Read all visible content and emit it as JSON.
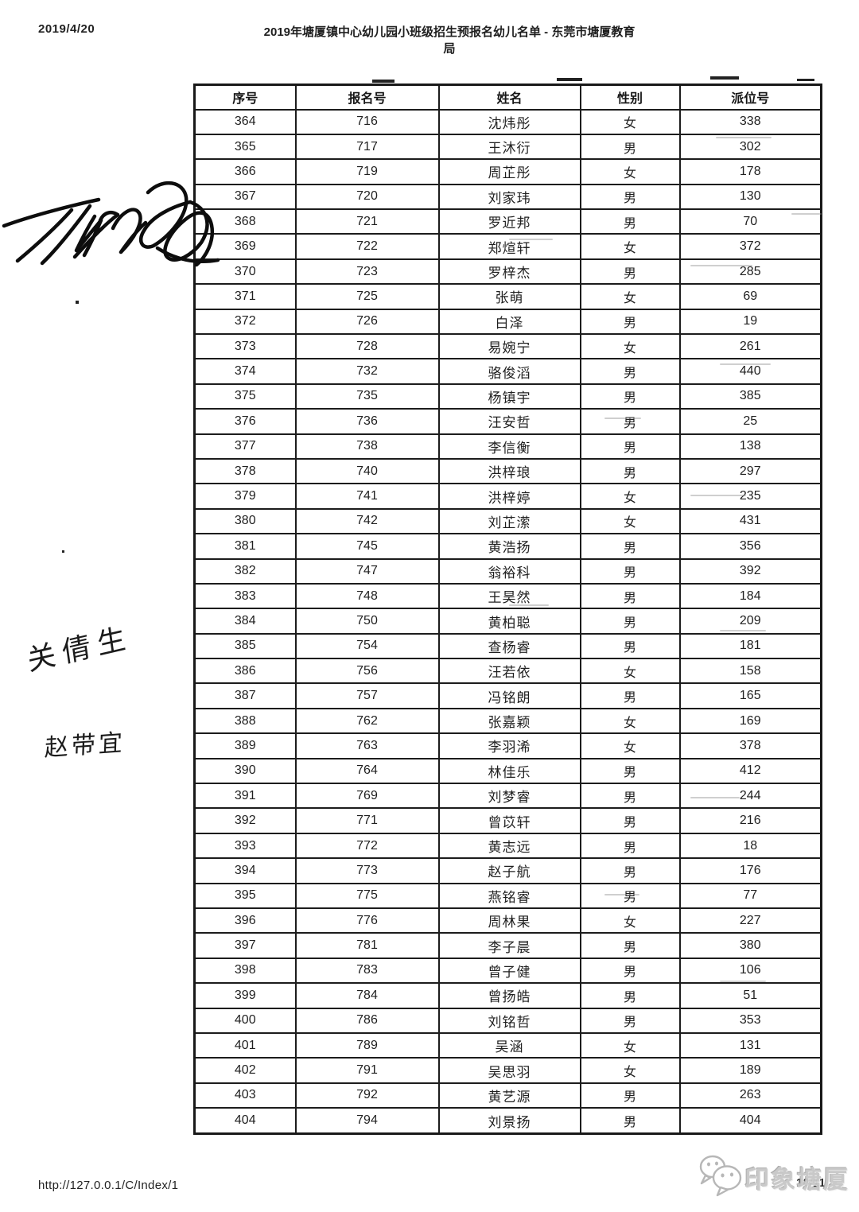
{
  "page": {
    "date": "2019/4/20",
    "title": "2019年塘厦镇中心幼儿园小班级招生预报名幼儿名单 - 东莞市塘厦教育局",
    "footer_url": "http://127.0.0.1/C/Index/1",
    "page_number": "10/11"
  },
  "table": {
    "columns": [
      "序号",
      "报名号",
      "姓名",
      "性别",
      "派位号"
    ],
    "rows": [
      [
        "364",
        "716",
        "沈炜彤",
        "女",
        "338"
      ],
      [
        "365",
        "717",
        "王沐衍",
        "男",
        "302"
      ],
      [
        "366",
        "719",
        "周芷彤",
        "女",
        "178"
      ],
      [
        "367",
        "720",
        "刘家玮",
        "男",
        "130"
      ],
      [
        "368",
        "721",
        "罗近邦",
        "男",
        "70"
      ],
      [
        "369",
        "722",
        "郑煊轩",
        "女",
        "372"
      ],
      [
        "370",
        "723",
        "罗梓杰",
        "男",
        "285"
      ],
      [
        "371",
        "725",
        "张萌",
        "女",
        "69"
      ],
      [
        "372",
        "726",
        "白泽",
        "男",
        "19"
      ],
      [
        "373",
        "728",
        "易婉宁",
        "女",
        "261"
      ],
      [
        "374",
        "732",
        "骆俊滔",
        "男",
        "440"
      ],
      [
        "375",
        "735",
        "杨镇宇",
        "男",
        "385"
      ],
      [
        "376",
        "736",
        "汪安哲",
        "男",
        "25"
      ],
      [
        "377",
        "738",
        "李信衡",
        "男",
        "138"
      ],
      [
        "378",
        "740",
        "洪梓琅",
        "男",
        "297"
      ],
      [
        "379",
        "741",
        "洪梓婷",
        "女",
        "235"
      ],
      [
        "380",
        "742",
        "刘芷潆",
        "女",
        "431"
      ],
      [
        "381",
        "745",
        "黄浩扬",
        "男",
        "356"
      ],
      [
        "382",
        "747",
        "翁裕科",
        "男",
        "392"
      ],
      [
        "383",
        "748",
        "王昊然",
        "男",
        "184"
      ],
      [
        "384",
        "750",
        "黄柏聪",
        "男",
        "209"
      ],
      [
        "385",
        "754",
        "查杨睿",
        "男",
        "181"
      ],
      [
        "386",
        "756",
        "汪若依",
        "女",
        "158"
      ],
      [
        "387",
        "757",
        "冯铭朗",
        "男",
        "165"
      ],
      [
        "388",
        "762",
        "张嘉颖",
        "女",
        "169"
      ],
      [
        "389",
        "763",
        "李羽浠",
        "女",
        "378"
      ],
      [
        "390",
        "764",
        "林佳乐",
        "男",
        "412"
      ],
      [
        "391",
        "769",
        "刘梦睿",
        "男",
        "244"
      ],
      [
        "392",
        "771",
        "曾苡轩",
        "男",
        "216"
      ],
      [
        "393",
        "772",
        "黄志远",
        "男",
        "18"
      ],
      [
        "394",
        "773",
        "赵子航",
        "男",
        "176"
      ],
      [
        "395",
        "775",
        "燕铭睿",
        "男",
        "77"
      ],
      [
        "396",
        "776",
        "周林果",
        "女",
        "227"
      ],
      [
        "397",
        "781",
        "李子晨",
        "男",
        "380"
      ],
      [
        "398",
        "783",
        "曾子健",
        "男",
        "106"
      ],
      [
        "399",
        "784",
        "曾扬皓",
        "男",
        "51"
      ],
      [
        "400",
        "786",
        "刘铭哲",
        "男",
        "353"
      ],
      [
        "401",
        "789",
        "吴涵",
        "女",
        "131"
      ],
      [
        "402",
        "791",
        "吴思羽",
        "女",
        "189"
      ],
      [
        "403",
        "792",
        "黄艺源",
        "男",
        "263"
      ],
      [
        "404",
        "794",
        "刘景扬",
        "男",
        "404"
      ]
    ]
  },
  "annotations": {
    "handwritten_names": [
      "关倩生",
      "赵带宜"
    ]
  },
  "watermark": {
    "text": "印象塘厦",
    "logo": "wechat-bubbles-icon",
    "color": "#c7c7c7"
  }
}
